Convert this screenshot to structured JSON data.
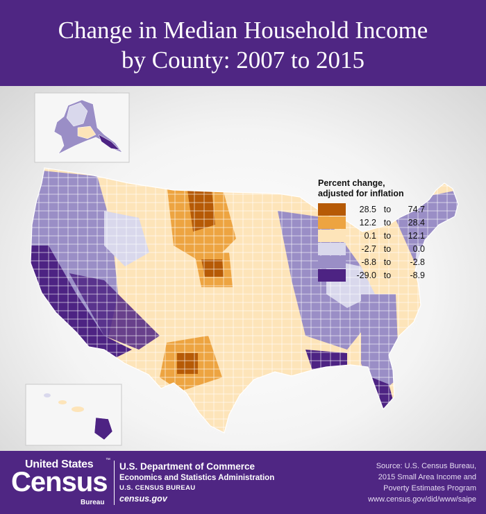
{
  "title": {
    "line1": "Change in Median Household Income",
    "line2": "by County: 2007 to 2015"
  },
  "legend": {
    "title_line1": "Percent change,",
    "title_line2": "adjusted for inflation",
    "items": [
      {
        "low": "28.5",
        "to": "to",
        "high": "74.7",
        "color": "#b65a06"
      },
      {
        "low": "12.2",
        "to": "to",
        "high": "28.4",
        "color": "#eda441"
      },
      {
        "low": "0.1",
        "to": "to",
        "high": "12.1",
        "color": "#fde4b9"
      },
      {
        "low": "-2.7",
        "to": "to",
        "high": "0.0",
        "color": "#d9d8ec"
      },
      {
        "low": "-8.8",
        "to": "to",
        "high": "-2.8",
        "color": "#9a8ec6"
      },
      {
        "low": "-29.0",
        "to": "to",
        "high": "-8.9",
        "color": "#4d2383"
      }
    ]
  },
  "colors": {
    "brand_purple": "#4f2683",
    "border": "#ffffff"
  },
  "footer": {
    "logo": {
      "united_states": "United States",
      "trademark": "™",
      "census": "Census",
      "bureau": "Bureau"
    },
    "dept": {
      "line1": "U.S. Department of Commerce",
      "line2": "Economics and Statistics Administration",
      "line3": "U.S. CENSUS BUREAU",
      "line4": "census.gov"
    },
    "source": {
      "line1": "Source: U.S. Census Bureau,",
      "line2": "2015 Small Area Income and",
      "line3": "Poverty Estimates Program",
      "line4": "www.census.gov/did/www/saipe"
    }
  }
}
